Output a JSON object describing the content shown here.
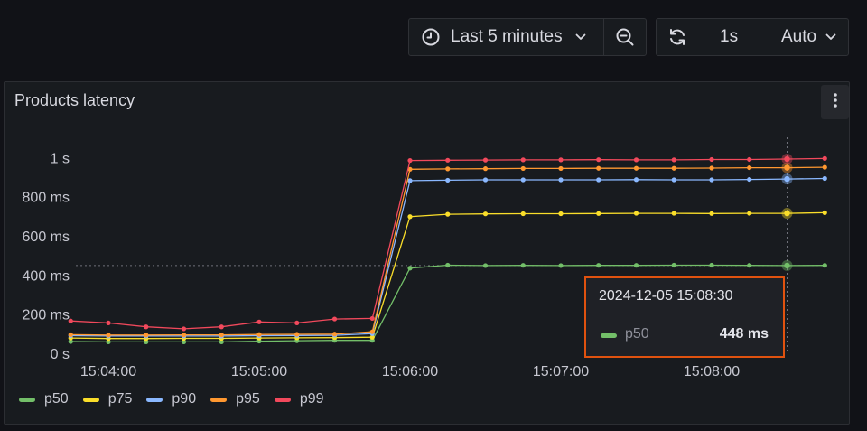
{
  "toolbar": {
    "time_range": "Last 5 minutes",
    "refresh_interval": "1s",
    "auto_label": "Auto"
  },
  "panel": {
    "title": "Products latency"
  },
  "tooltip": {
    "time": "2024-12-05 15:08:30",
    "series": "p50",
    "value": "448 ms",
    "color": "#73bf69"
  },
  "chart_data": {
    "type": "line",
    "title": "Products latency",
    "x": [
      "15:03:45",
      "15:04:00",
      "15:04:15",
      "15:04:30",
      "15:04:45",
      "15:05:00",
      "15:05:15",
      "15:05:30",
      "15:05:45",
      "15:06:00",
      "15:06:15",
      "15:06:30",
      "15:06:45",
      "15:07:00",
      "15:07:15",
      "15:07:30",
      "15:07:45",
      "15:08:00",
      "15:08:15",
      "15:08:30",
      "15:08:45"
    ],
    "x_ticks": [
      "15:04:00",
      "15:05:00",
      "15:06:00",
      "15:07:00",
      "15:08:00"
    ],
    "y_ticks": [
      "0 s",
      "200 ms",
      "400 ms",
      "600 ms",
      "800 ms",
      "1 s"
    ],
    "ylim": [
      0,
      1100
    ],
    "y_unit": "ms",
    "series": [
      {
        "name": "p50",
        "color": "#73bf69",
        "values": [
          60,
          58,
          58,
          58,
          58,
          62,
          64,
          66,
          66,
          435,
          450,
          448,
          449,
          448,
          449,
          449,
          450,
          450,
          449,
          448,
          449
        ]
      },
      {
        "name": "p75",
        "color": "#fade2a",
        "values": [
          78,
          75,
          75,
          76,
          76,
          78,
          79,
          80,
          82,
          698,
          710,
          712,
          713,
          713,
          714,
          715,
          715,
          714,
          715,
          715,
          718
        ]
      },
      {
        "name": "p90",
        "color": "#8ab8ff",
        "values": [
          90,
          88,
          88,
          88,
          88,
          90,
          91,
          92,
          100,
          882,
          884,
          886,
          886,
          886,
          886,
          887,
          886,
          886,
          888,
          890,
          893
        ]
      },
      {
        "name": "p95",
        "color": "#ff9830",
        "values": [
          95,
          93,
          93,
          94,
          94,
          96,
          97,
          98,
          110,
          940,
          942,
          943,
          944,
          944,
          945,
          945,
          945,
          946,
          948,
          948,
          950
        ]
      },
      {
        "name": "p99",
        "color": "#f2495c",
        "values": [
          165,
          155,
          135,
          125,
          135,
          160,
          155,
          175,
          178,
          985,
          986,
          987,
          988,
          988,
          989,
          988,
          988,
          990,
          990,
          992,
          995
        ]
      }
    ],
    "highlight_index": 19,
    "threshold_value": 448,
    "grid": false,
    "legend": "bottom"
  }
}
